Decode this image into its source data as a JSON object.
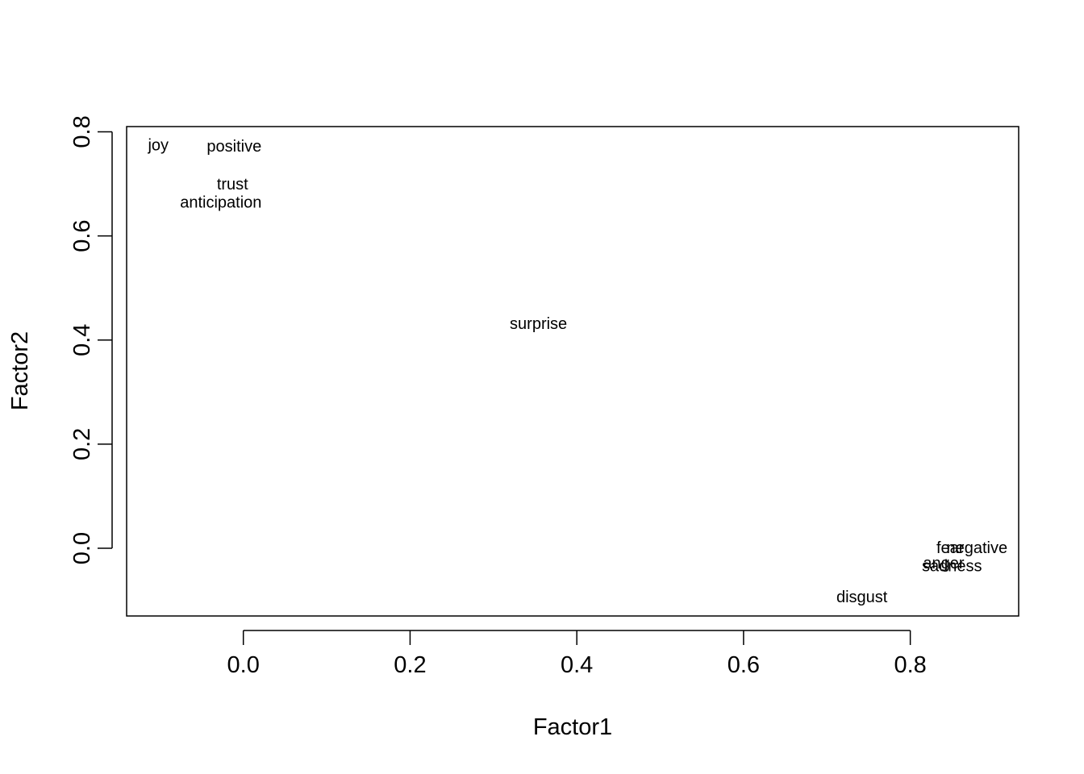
{
  "chart_data": {
    "type": "scatter",
    "title": "",
    "xlabel": "Factor1",
    "ylabel": "Factor2",
    "xlim": [
      -0.14,
      0.93
    ],
    "ylim": [
      -0.13,
      0.81
    ],
    "x_ticks": [
      0.0,
      0.2,
      0.4,
      0.6,
      0.8
    ],
    "x_tick_labels": [
      "0.0",
      "0.2",
      "0.4",
      "0.6",
      "0.8"
    ],
    "y_ticks": [
      0.0,
      0.2,
      0.4,
      0.6,
      0.8
    ],
    "y_tick_labels": [
      "0.0",
      "0.2",
      "0.4",
      "0.6",
      "0.8"
    ],
    "grid": false,
    "marker": "text-label",
    "points": [
      {
        "label": "joy",
        "x": -0.102,
        "y": 0.775
      },
      {
        "label": "positive",
        "x": -0.011,
        "y": 0.773
      },
      {
        "label": "trust",
        "x": -0.013,
        "y": 0.7
      },
      {
        "label": "anticipation",
        "x": -0.027,
        "y": 0.665
      },
      {
        "label": "surprise",
        "x": 0.354,
        "y": 0.432
      },
      {
        "label": "fear",
        "x": 0.848,
        "y": 0.002
      },
      {
        "label": "negative",
        "x": 0.88,
        "y": 0.002
      },
      {
        "label": "anger",
        "x": 0.84,
        "y": -0.028
      },
      {
        "label": "sadness",
        "x": 0.85,
        "y": -0.033
      },
      {
        "label": "disgust",
        "x": 0.742,
        "y": -0.093
      }
    ]
  }
}
